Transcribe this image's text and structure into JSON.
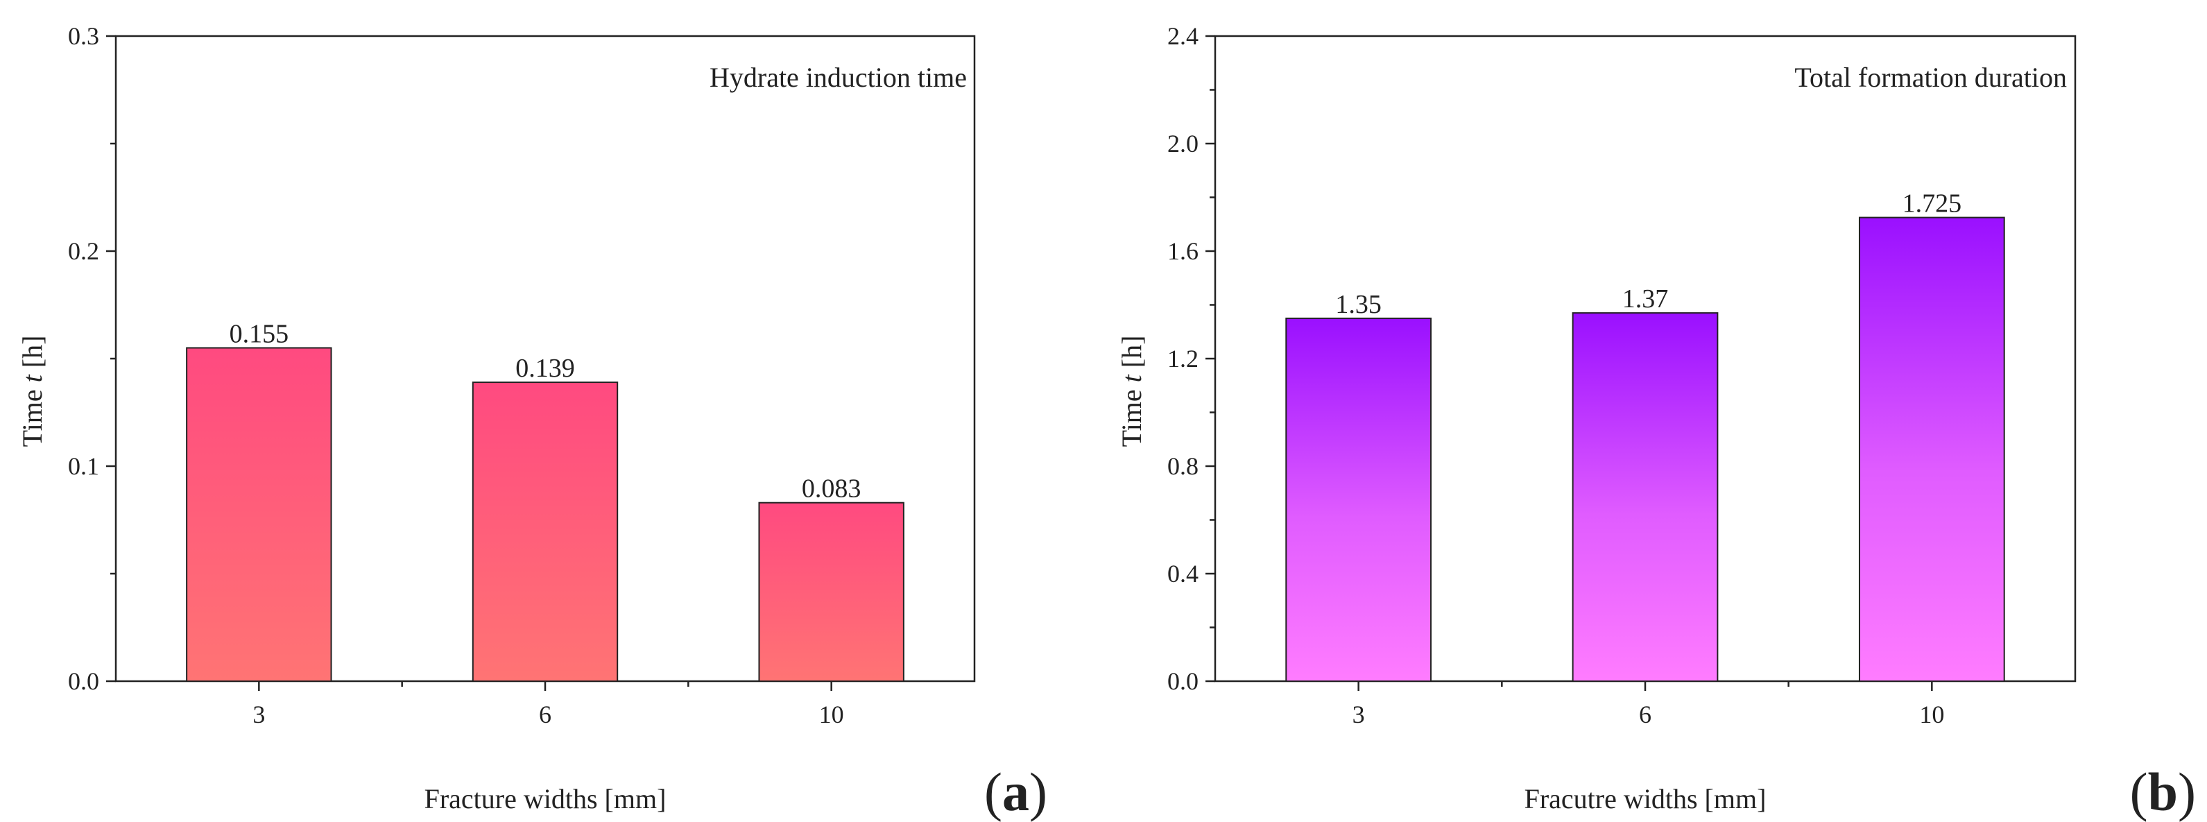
{
  "chart_data": [
    {
      "type": "bar",
      "panel_label": "a",
      "title": "",
      "annotation": "Hydrate induction time",
      "xlabel": "Fracture widths [mm]",
      "ylabel_prefix": "Time ",
      "ylabel_var": "t",
      "ylabel_suffix": " [h]",
      "categories": [
        "3",
        "6",
        "10"
      ],
      "values": [
        0.155,
        0.139,
        0.083
      ],
      "data_labels": [
        "0.155",
        "0.139",
        "0.083"
      ],
      "ylim": [
        0,
        0.3
      ],
      "yticks": [
        0.0,
        0.1,
        0.2,
        0.3
      ],
      "ytick_labels": [
        "0.0",
        "0.1",
        "0.2",
        "0.3"
      ],
      "grid": false,
      "bar_color_top": "#ff4a80",
      "bar_color_bottom": "#ff7474"
    },
    {
      "type": "bar",
      "panel_label": "b",
      "title": "",
      "annotation": "Total formation duration",
      "xlabel": "Fracutre widths [mm]",
      "ylabel_prefix": "Time ",
      "ylabel_var": "t",
      "ylabel_suffix": " [h]",
      "categories": [
        "3",
        "6",
        "10"
      ],
      "values": [
        1.35,
        1.37,
        1.725
      ],
      "data_labels": [
        "1.35",
        "1.37",
        "1.725"
      ],
      "ylim": [
        0,
        2.4
      ],
      "yticks": [
        0.0,
        0.4,
        0.8,
        1.2,
        1.6,
        2.0,
        2.4
      ],
      "ytick_labels": [
        "0.0",
        "0.4",
        "0.8",
        "1.2",
        "1.6",
        "2.0",
        "2.4"
      ],
      "grid": false,
      "bar_color_top": "#9a10ff",
      "bar_color_bottom": "#ff7cff"
    }
  ]
}
